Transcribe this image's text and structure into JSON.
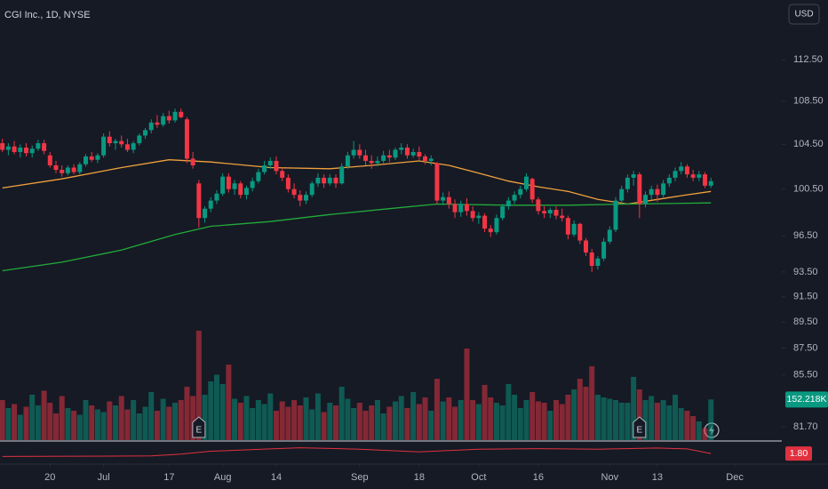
{
  "chart_data": {
    "type": "candlestick",
    "title": "CGI Inc., 1D, NYSE",
    "currency": "USD",
    "log_scale": true,
    "grid": false,
    "up_color": "#089981",
    "down_color": "#f23645",
    "ylim": [
      80.76,
      118.5
    ],
    "yticks": [
      {
        "value": 112.5,
        "label": "112.50"
      },
      {
        "value": 108.5,
        "label": "108.50"
      },
      {
        "value": 104.5,
        "label": "104.50"
      },
      {
        "value": 100.5,
        "label": "100.50"
      },
      {
        "value": 96.5,
        "label": "96.50"
      },
      {
        "value": 93.5,
        "label": "93.50"
      },
      {
        "value": 91.5,
        "label": "91.50"
      },
      {
        "value": 89.5,
        "label": "89.50"
      },
      {
        "value": 87.5,
        "label": "87.50"
      },
      {
        "value": 85.5,
        "label": "85.50"
      },
      {
        "value": 81.7,
        "label": "81.70"
      }
    ],
    "xlim": [
      -0.4,
      130.9
    ],
    "xticks": [
      {
        "value": 8,
        "label": "20"
      },
      {
        "value": 17,
        "label": "Jul"
      },
      {
        "value": 28,
        "label": "17"
      },
      {
        "value": 37,
        "label": "Aug"
      },
      {
        "value": 46,
        "label": "14"
      },
      {
        "value": 60,
        "label": "Sep"
      },
      {
        "value": 70,
        "label": "18"
      },
      {
        "value": 80,
        "label": "Oct"
      },
      {
        "value": 90,
        "label": "16"
      },
      {
        "value": 102,
        "label": "Nov"
      },
      {
        "value": 110,
        "label": "13"
      },
      {
        "value": 123,
        "label": "Dec"
      }
    ],
    "ohlc": [
      [
        104.6,
        105.0,
        103.8,
        104.0
      ],
      [
        104.0,
        104.6,
        103.5,
        104.3
      ],
      [
        104.3,
        104.8,
        103.6,
        103.8
      ],
      [
        103.8,
        104.5,
        103.3,
        104.2
      ],
      [
        104.2,
        104.6,
        103.4,
        103.7
      ],
      [
        103.7,
        104.4,
        103.3,
        104.1
      ],
      [
        104.1,
        104.9,
        103.9,
        104.6
      ],
      [
        104.6,
        104.9,
        103.6,
        103.9
      ],
      [
        103.5,
        103.8,
        102.4,
        102.6
      ],
      [
        102.6,
        103.0,
        101.9,
        102.2
      ],
      [
        102.2,
        102.6,
        101.6,
        101.9
      ],
      [
        101.9,
        102.6,
        101.7,
        102.4
      ],
      [
        102.4,
        102.7,
        101.8,
        102.0
      ],
      [
        102.0,
        102.9,
        101.8,
        102.7
      ],
      [
        102.7,
        103.6,
        102.5,
        103.4
      ],
      [
        103.4,
        103.8,
        102.9,
        103.1
      ],
      [
        103.1,
        103.7,
        102.8,
        103.5
      ],
      [
        103.5,
        105.5,
        103.3,
        105.2
      ],
      [
        105.2,
        105.7,
        104.3,
        104.6
      ],
      [
        104.6,
        105.0,
        104.0,
        104.8
      ],
      [
        104.8,
        105.3,
        104.2,
        104.5
      ],
      [
        104.5,
        105.0,
        103.8,
        104.0
      ],
      [
        104.0,
        104.8,
        103.7,
        104.6
      ],
      [
        104.6,
        105.5,
        104.4,
        105.3
      ],
      [
        105.3,
        106.0,
        105.0,
        105.8
      ],
      [
        105.8,
        106.8,
        105.5,
        106.5
      ],
      [
        106.5,
        107.2,
        106.0,
        106.3
      ],
      [
        106.3,
        107.4,
        106.1,
        107.1
      ],
      [
        107.1,
        107.6,
        106.4,
        106.7
      ],
      [
        106.7,
        107.8,
        106.5,
        107.5
      ],
      [
        107.5,
        107.8,
        106.9,
        107.0
      ],
      [
        106.8,
        107.0,
        102.8,
        103.2
      ],
      [
        103.2,
        103.8,
        102.3,
        102.6
      ],
      [
        101.0,
        101.3,
        97.2,
        98.0
      ],
      [
        98.0,
        99.0,
        97.6,
        98.8
      ],
      [
        98.8,
        99.8,
        98.5,
        99.5
      ],
      [
        99.5,
        100.4,
        99.2,
        100.1
      ],
      [
        100.1,
        101.9,
        99.9,
        101.6
      ],
      [
        101.6,
        101.9,
        100.2,
        100.5
      ],
      [
        100.5,
        101.3,
        100.0,
        101.0
      ],
      [
        101.0,
        101.2,
        99.7,
        100.0
      ],
      [
        100.0,
        100.8,
        99.6,
        100.6
      ],
      [
        100.6,
        101.5,
        100.3,
        101.2
      ],
      [
        101.2,
        102.3,
        101.0,
        102.0
      ],
      [
        102.0,
        103.0,
        101.8,
        102.6
      ],
      [
        102.6,
        103.3,
        102.3,
        103.0
      ],
      [
        103.0,
        103.4,
        101.8,
        102.1
      ],
      [
        102.1,
        102.4,
        101.2,
        101.5
      ],
      [
        101.5,
        101.8,
        100.2,
        100.5
      ],
      [
        100.5,
        101.0,
        99.7,
        100.0
      ],
      [
        100.0,
        100.4,
        99.0,
        99.5
      ],
      [
        99.5,
        100.3,
        99.2,
        100.0
      ],
      [
        100.0,
        101.2,
        99.8,
        101.0
      ],
      [
        101.0,
        101.9,
        100.7,
        101.5
      ],
      [
        101.5,
        101.8,
        100.6,
        101.0
      ],
      [
        101.0,
        101.8,
        100.8,
        101.5
      ],
      [
        101.5,
        101.8,
        100.6,
        101.0
      ],
      [
        101.0,
        102.8,
        100.9,
        102.5
      ],
      [
        102.5,
        103.8,
        102.3,
        103.5
      ],
      [
        103.5,
        104.8,
        103.2,
        104.0
      ],
      [
        104.0,
        104.5,
        103.2,
        103.5
      ],
      [
        103.5,
        104.0,
        102.6,
        103.0
      ],
      [
        103.0,
        103.5,
        102.3,
        102.8
      ],
      [
        102.8,
        103.4,
        102.5,
        103.0
      ],
      [
        103.0,
        103.9,
        102.8,
        103.5
      ],
      [
        103.5,
        104.0,
        102.9,
        103.3
      ],
      [
        103.3,
        104.2,
        103.1,
        104.0
      ],
      [
        104.0,
        104.6,
        103.6,
        104.2
      ],
      [
        104.2,
        104.5,
        103.2,
        103.5
      ],
      [
        103.5,
        104.1,
        103.3,
        103.8
      ],
      [
        103.8,
        104.3,
        103.1,
        103.4
      ],
      [
        103.4,
        103.6,
        102.7,
        103.0
      ],
      [
        103.0,
        103.5,
        102.6,
        103.2
      ],
      [
        102.8,
        102.9,
        99.2,
        99.5
      ],
      [
        99.5,
        100.2,
        99.1,
        99.8
      ],
      [
        99.8,
        100.3,
        98.8,
        99.2
      ],
      [
        99.2,
        99.6,
        98.0,
        98.5
      ],
      [
        98.5,
        99.5,
        98.1,
        99.2
      ],
      [
        99.2,
        99.7,
        98.2,
        98.6
      ],
      [
        98.6,
        99.0,
        97.7,
        98.0
      ],
      [
        98.0,
        98.5,
        97.5,
        98.2
      ],
      [
        98.2,
        98.4,
        96.8,
        97.1
      ],
      [
        97.1,
        97.4,
        96.4,
        96.8
      ],
      [
        96.8,
        98.3,
        96.6,
        98.0
      ],
      [
        98.0,
        99.2,
        97.8,
        99.0
      ],
      [
        99.0,
        99.8,
        98.7,
        99.5
      ],
      [
        99.5,
        100.3,
        99.2,
        100.0
      ],
      [
        100.0,
        100.8,
        99.7,
        100.5
      ],
      [
        100.5,
        101.9,
        100.3,
        101.6
      ],
      [
        101.4,
        101.5,
        99.3,
        99.6
      ],
      [
        99.6,
        99.8,
        98.3,
        98.6
      ],
      [
        98.6,
        99.0,
        98.0,
        98.4
      ],
      [
        98.4,
        98.9,
        98.0,
        98.7
      ],
      [
        98.7,
        99.0,
        97.9,
        98.2
      ],
      [
        98.2,
        98.8,
        97.7,
        98.0
      ],
      [
        98.0,
        98.2,
        96.2,
        96.6
      ],
      [
        96.6,
        97.8,
        96.4,
        97.5
      ],
      [
        97.5,
        97.6,
        95.8,
        96.1
      ],
      [
        96.1,
        96.3,
        94.8,
        95.1
      ],
      [
        95.1,
        95.4,
        93.5,
        94.0
      ],
      [
        94.0,
        94.8,
        93.7,
        94.6
      ],
      [
        94.6,
        96.3,
        94.4,
        96.0
      ],
      [
        96.0,
        97.3,
        95.8,
        97.0
      ],
      [
        97.0,
        99.8,
        96.8,
        99.5
      ],
      [
        99.5,
        100.8,
        99.2,
        100.5
      ],
      [
        100.5,
        101.8,
        100.2,
        101.5
      ],
      [
        101.5,
        102.1,
        100.8,
        101.8
      ],
      [
        101.8,
        102.0,
        98.0,
        99.2
      ],
      [
        99.2,
        100.3,
        98.9,
        100.0
      ],
      [
        100.0,
        100.8,
        99.6,
        100.5
      ],
      [
        100.5,
        100.9,
        99.4,
        100.0
      ],
      [
        100.0,
        101.3,
        99.8,
        101.0
      ],
      [
        101.0,
        101.8,
        100.7,
        101.5
      ],
      [
        101.5,
        102.4,
        101.2,
        102.1
      ],
      [
        102.1,
        102.9,
        101.8,
        102.5
      ],
      [
        102.5,
        102.7,
        101.5,
        101.8
      ],
      [
        101.8,
        102.2,
        101.2,
        101.5
      ],
      [
        101.5,
        102.1,
        101.2,
        101.8
      ],
      [
        101.8,
        102.0,
        100.6,
        100.8
      ],
      [
        100.8,
        101.5,
        100.6,
        101.2
      ]
    ],
    "volume": {
      "vlim": [
        0,
        500000
      ],
      "values": [
        150000,
        120000,
        135000,
        95000,
        125000,
        170000,
        130000,
        185000,
        140000,
        100000,
        165000,
        120000,
        110000,
        95000,
        150000,
        130000,
        115000,
        105000,
        145000,
        130000,
        165000,
        115000,
        150000,
        100000,
        125000,
        180000,
        110000,
        155000,
        125000,
        140000,
        150000,
        200000,
        165000,
        410000,
        170000,
        220000,
        245000,
        210000,
        283000,
        155000,
        140000,
        165000,
        120000,
        150000,
        135000,
        175000,
        110000,
        145000,
        125000,
        150000,
        130000,
        160000,
        115000,
        175000,
        105000,
        140000,
        130000,
        200000,
        155000,
        120000,
        140000,
        110000,
        130000,
        150000,
        100000,
        125000,
        145000,
        165000,
        120000,
        180000,
        135000,
        160000,
        110000,
        230000,
        145000,
        160000,
        125000,
        150000,
        343000,
        150000,
        135000,
        207000,
        160000,
        140000,
        130000,
        210000,
        170000,
        120000,
        150000,
        180000,
        145000,
        140000,
        110000,
        150000,
        135000,
        170000,
        190000,
        230000,
        200000,
        277000,
        170000,
        160000,
        155000,
        150000,
        140000,
        140000,
        237000,
        190000,
        150000,
        165000,
        140000,
        150000,
        130000,
        170000,
        120000,
        110000,
        90000,
        70000,
        45000,
        152218
      ],
      "last_label": "152.218K"
    },
    "series": [
      {
        "color": "#f0a23c",
        "x": [
          0,
          10,
          20,
          28,
          35,
          45,
          55,
          62,
          70,
          75,
          80,
          85,
          90,
          95,
          100,
          105,
          110,
          115,
          119
        ],
        "values": [
          100.6,
          101.4,
          102.4,
          103.1,
          102.9,
          102.4,
          102.3,
          102.6,
          103.0,
          102.6,
          101.9,
          101.2,
          100.7,
          100.3,
          99.6,
          99.2,
          99.6,
          100.0,
          100.3
        ]
      },
      {
        "color": "#22ab3a",
        "x": [
          0,
          10,
          20,
          29,
          35,
          45,
          55,
          65,
          73,
          85,
          95,
          105,
          119
        ],
        "values": [
          93.6,
          94.3,
          95.3,
          96.6,
          97.3,
          97.7,
          98.3,
          98.8,
          99.2,
          99.1,
          99.1,
          99.2,
          99.3
        ]
      }
    ],
    "events": [
      {
        "x": 33,
        "label": "E"
      },
      {
        "x": 107,
        "label": "E"
      }
    ],
    "indicator": {
      "color": "#e0313f",
      "ilim": [
        1.5,
        2.2
      ],
      "x": [
        0,
        25,
        30,
        35,
        45,
        50,
        60,
        70,
        80,
        90,
        100,
        110,
        115,
        119
      ],
      "values": [
        1.7,
        1.72,
        1.78,
        1.88,
        1.96,
        2.0,
        1.95,
        1.86,
        1.95,
        1.97,
        1.95,
        1.99,
        1.96,
        1.8
      ],
      "last_label": "1.80"
    }
  }
}
